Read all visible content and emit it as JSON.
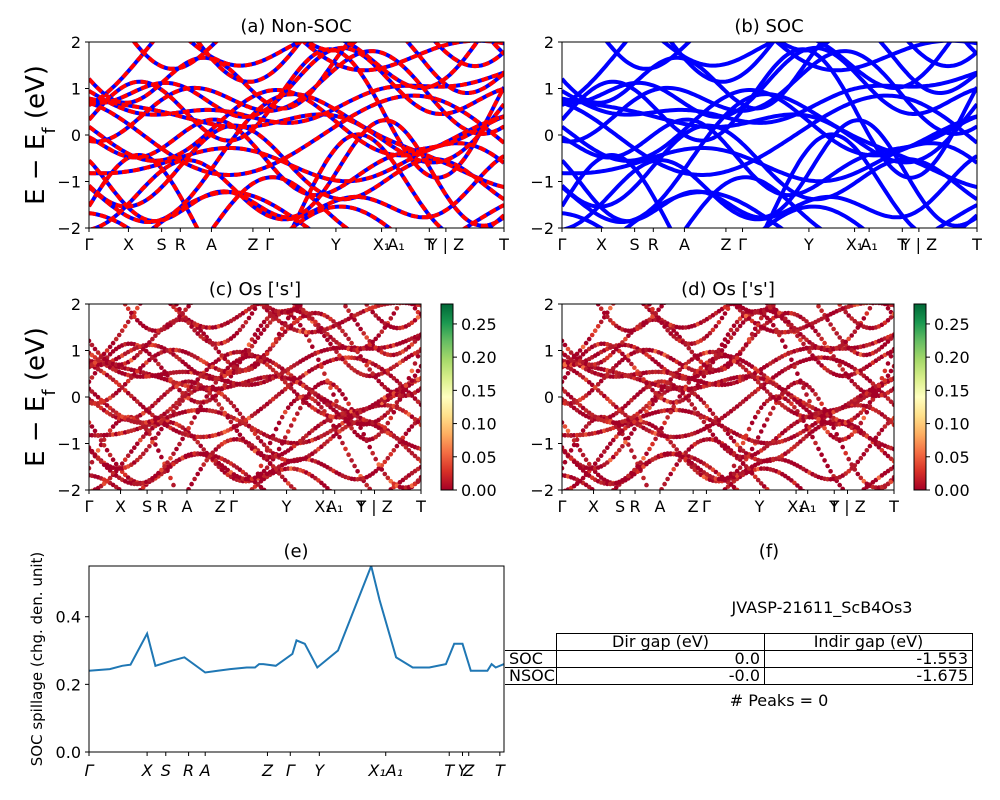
{
  "kpath_labels": [
    "Γ",
    "X",
    "S",
    "R",
    "A",
    "Z",
    "Γ",
    "Y",
    "X₁",
    "A₁",
    "T",
    "Y | Z",
    "T"
  ],
  "colors": {
    "nonsoc_a": "#ff0000",
    "nonsoc_b": "#0000ff",
    "soc": "#0000ff",
    "spillage": "#1f77b4"
  },
  "panel_f": {
    "title": "(f)",
    "material": "JVASP-21611_ScB4Os3",
    "col_headers": [
      "Dir gap (eV)",
      "Indir gap (eV)"
    ],
    "rows": [
      {
        "label": "SOC",
        "dir": "0.0",
        "indir": "-1.553"
      },
      {
        "label": "NSOC",
        "dir": "-0.0",
        "indir": "-1.675"
      }
    ],
    "peaks": "# Peaks = 0"
  },
  "chart_data": [
    {
      "type": "line",
      "title": "(a) Non-SOC",
      "ylabel": "E − E_f (eV)",
      "ylim": [
        -2,
        2
      ],
      "yticks": [
        "−2",
        "−1",
        "0",
        "1",
        "2"
      ],
      "style": "red/blue dashed band structure"
    },
    {
      "type": "line",
      "title": "(b) SOC",
      "ylim": [
        -2,
        2
      ],
      "yticks": [
        "−2",
        "−1",
        "0",
        "1",
        "2"
      ],
      "style": "blue band structure"
    },
    {
      "type": "scatter",
      "title": "(c)  Os ['s']",
      "ylabel": "E − E_f (eV)",
      "ylim": [
        -2,
        2
      ],
      "yticks": [
        "−2",
        "−1",
        "0",
        "1",
        "2"
      ],
      "colorbar_ticks": [
        "0.00",
        "0.05",
        "0.10",
        "0.15",
        "0.20",
        "0.25"
      ],
      "colormap": "RdYlGn"
    },
    {
      "type": "scatter",
      "title": "(d) Os ['s']",
      "ylim": [
        -2,
        2
      ],
      "yticks": [
        "−2",
        "−1",
        "0",
        "1",
        "2"
      ],
      "colorbar_ticks": [
        "0.00",
        "0.05",
        "0.10",
        "0.15",
        "0.20",
        "0.25"
      ],
      "colormap": "RdYlGn"
    },
    {
      "type": "line",
      "title": "(e)",
      "ylabel": "SOC spillage (chg. den. unit)",
      "ylim": [
        0,
        0.55
      ],
      "yticks": [
        "0.0",
        "0.2",
        "0.4"
      ],
      "xlabels": [
        "Γ",
        "X",
        "S",
        "R",
        "A",
        "Z",
        "Γ",
        "Y",
        "X₁A₁",
        "T",
        "Y",
        "Z",
        "T"
      ],
      "x": [
        0,
        5,
        8,
        10,
        14,
        16,
        20,
        23,
        28,
        31,
        34,
        38,
        40,
        41,
        42,
        45,
        49,
        50,
        52,
        55,
        60,
        68,
        70,
        74,
        78,
        82,
        86,
        88,
        90,
        92,
        94,
        96,
        97,
        98,
        100
      ],
      "y": [
        0.24,
        0.245,
        0.255,
        0.258,
        0.35,
        0.255,
        0.27,
        0.28,
        0.235,
        0.24,
        0.245,
        0.25,
        0.25,
        0.26,
        0.26,
        0.255,
        0.29,
        0.33,
        0.32,
        0.25,
        0.3,
        0.55,
        0.45,
        0.28,
        0.25,
        0.25,
        0.26,
        0.32,
        0.32,
        0.24,
        0.24,
        0.24,
        0.26,
        0.25,
        0.26
      ]
    }
  ]
}
